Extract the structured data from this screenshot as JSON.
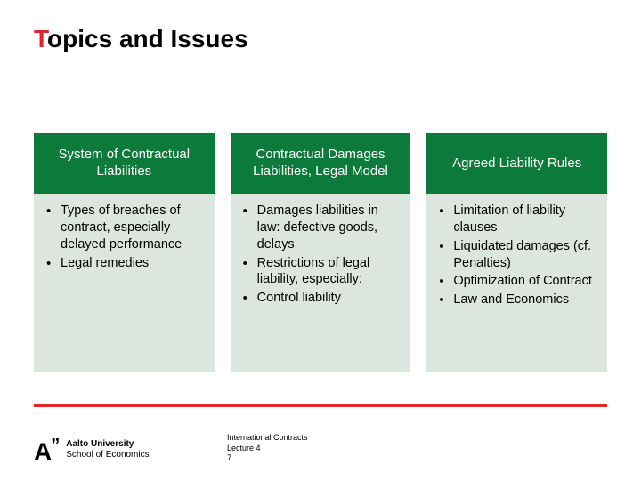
{
  "title": {
    "pre": "T",
    "rest": "opics and Issues"
  },
  "accent_color": "#e42528",
  "header_bg": "#0c7a3a",
  "body_bg": "#dde6de",
  "columns": [
    {
      "header": "System of Contractual Liabilities",
      "items": [
        "Types of breaches of contract, especially delayed performance",
        "Legal remedies"
      ]
    },
    {
      "header": "Contractual Damages Liabilities, Legal Model",
      "items": [
        "Damages liabilities in law: defective goods, delays",
        "Restrictions of legal liability, especially:",
        "Control liability"
      ]
    },
    {
      "header": "Agreed Liability Rules",
      "items": [
        "Limitation of liability clauses",
        "Liquidated damages (cf. Penalties)",
        "Optimization of Contract",
        "Law and Economics"
      ]
    }
  ],
  "logo": {
    "mark": "A",
    "quote": "”",
    "line1": "Aalto University",
    "line2": "School of Economics"
  },
  "footer": {
    "line1": "International Contracts",
    "line2": "Lecture 4",
    "line3": "7"
  }
}
